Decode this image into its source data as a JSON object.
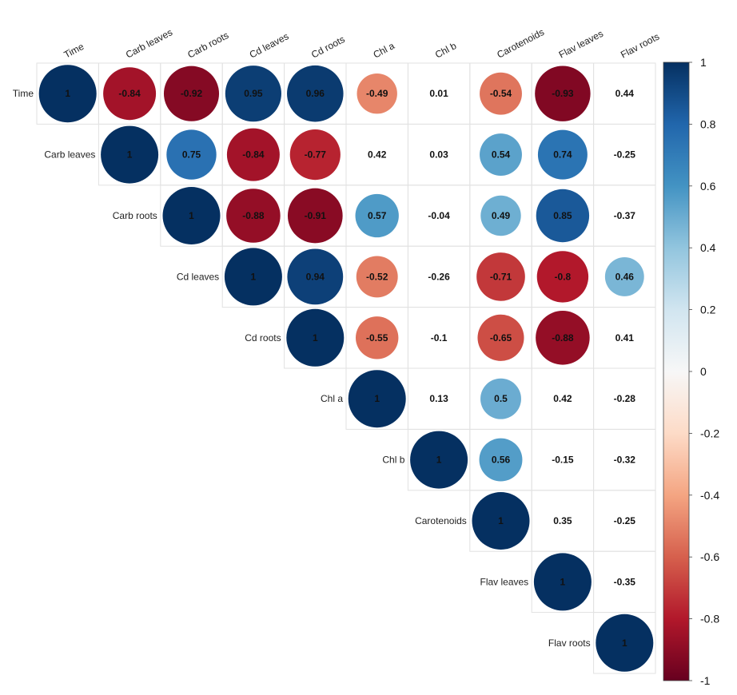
{
  "chart_data": {
    "type": "heatmap",
    "title": "",
    "subtitle": "",
    "style": "correlation-plot-upper-triangle-circles",
    "variables": [
      "Time",
      "Carb leaves",
      "Carb roots",
      "Cd leaves",
      "Cd roots",
      "Chl a",
      "Chl b",
      "Carotenoids",
      "Flav leaves",
      "Flav roots"
    ],
    "matrix": [
      [
        1,
        -0.84,
        -0.92,
        0.95,
        0.96,
        -0.49,
        0.01,
        -0.54,
        -0.93,
        0.44
      ],
      [
        null,
        1,
        0.75,
        -0.84,
        -0.77,
        0.42,
        0.03,
        0.54,
        0.74,
        -0.25
      ],
      [
        null,
        null,
        1,
        -0.88,
        -0.91,
        0.57,
        -0.04,
        0.49,
        0.85,
        -0.37
      ],
      [
        null,
        null,
        null,
        1,
        0.94,
        -0.52,
        -0.26,
        -0.71,
        -0.8,
        0.46
      ],
      [
        null,
        null,
        null,
        null,
        1,
        -0.55,
        -0.1,
        -0.65,
        -0.88,
        0.41
      ],
      [
        null,
        null,
        null,
        null,
        null,
        1,
        0.13,
        0.5,
        0.42,
        -0.28
      ],
      [
        null,
        null,
        null,
        null,
        null,
        null,
        1,
        0.56,
        -0.15,
        -0.32
      ],
      [
        null,
        null,
        null,
        null,
        null,
        null,
        null,
        1,
        0.35,
        -0.25
      ],
      [
        null,
        null,
        null,
        null,
        null,
        null,
        null,
        null,
        1,
        -0.35
      ],
      [
        null,
        null,
        null,
        null,
        null,
        null,
        null,
        null,
        null,
        1
      ]
    ],
    "labels": [
      [
        "1",
        "-0.84",
        "-0.92",
        "0.95",
        "0.96",
        "-0.49",
        "0.01",
        "-0.54",
        "-0.93",
        "0.44"
      ],
      [
        null,
        "1",
        "0.75",
        "-0.84",
        "-0.77",
        "0.42",
        "0.03",
        "0.54",
        "0.74",
        "-0.25"
      ],
      [
        null,
        null,
        "1",
        "-0.88",
        "-0.91",
        "0.57",
        "-0.04",
        "0.49",
        "0.85",
        "-0.37"
      ],
      [
        null,
        null,
        null,
        "1",
        "0.94",
        "-0.52",
        "-0.26",
        "-0.71",
        "-0.8",
        "0.46"
      ],
      [
        null,
        null,
        null,
        null,
        "1",
        "-0.55",
        "-0.1",
        "-0.65",
        "-0.88",
        "0.41"
      ],
      [
        null,
        null,
        null,
        null,
        null,
        "1",
        "0.13",
        "0.5",
        "0.42",
        "-0.28"
      ],
      [
        null,
        null,
        null,
        null,
        null,
        null,
        "1",
        "0.56",
        "-0.15",
        "-0.32"
      ],
      [
        null,
        null,
        null,
        null,
        null,
        null,
        null,
        "1",
        "0.35",
        "-0.25"
      ],
      [
        null,
        null,
        null,
        null,
        null,
        null,
        null,
        null,
        "1",
        "-0.35"
      ],
      [
        null,
        null,
        null,
        null,
        null,
        null,
        null,
        null,
        null,
        "1"
      ]
    ],
    "min_circle_abs_value": 0.45,
    "colorbar": {
      "range": [
        -1,
        1
      ],
      "ticks": [
        "1",
        "0.8",
        "0.6",
        "0.4",
        "0.2",
        "0",
        "-0.2",
        "-0.4",
        "-0.6",
        "-0.8",
        "-1"
      ],
      "tick_values": [
        1,
        0.8,
        0.6,
        0.4,
        0.2,
        0,
        -0.2,
        -0.4,
        -0.6,
        -0.8,
        -1
      ],
      "colors": [
        "#67001f",
        "#b2182b",
        "#d6604d",
        "#f4a582",
        "#fddbc7",
        "#f7f7f7",
        "#d1e5f0",
        "#92c5de",
        "#4393c3",
        "#2166ac",
        "#053061"
      ],
      "placement": "right"
    }
  }
}
